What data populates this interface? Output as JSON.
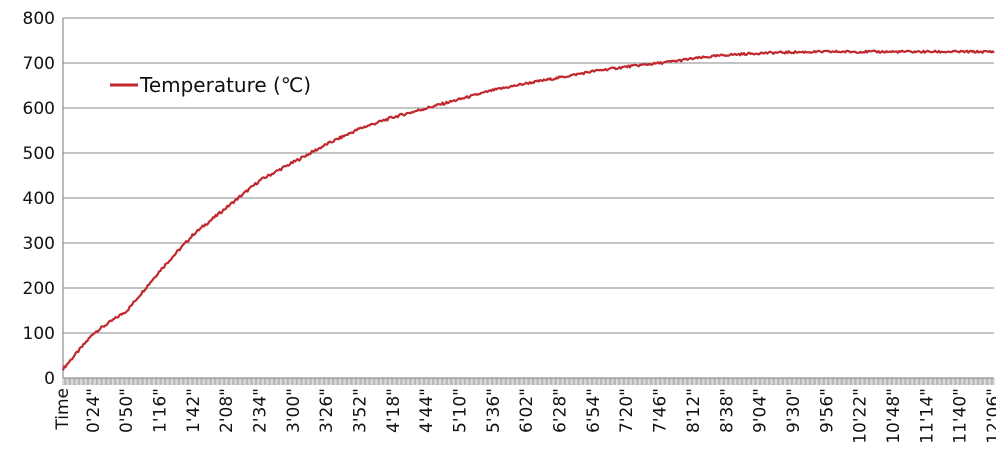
{
  "chart_data": {
    "type": "line",
    "title": "",
    "xlabel": "",
    "ylabel": "",
    "ylim": [
      0,
      800
    ],
    "yticks": [
      0,
      100,
      200,
      300,
      400,
      500,
      600,
      700,
      800
    ],
    "grid": true,
    "legend_position": "top-left",
    "xtick_labels": [
      "Time",
      "0'24\"",
      "0'50\"",
      "1'16\"",
      "1'42\"",
      "2'08\"",
      "2'34\"",
      "3'00\"",
      "3'26\"",
      "3'52\"",
      "4'18\"",
      "4'44\"",
      "5'10\"",
      "5'36\"",
      "6'02\"",
      "6'28\"",
      "6'54\"",
      "7'20\"",
      "7'46\"",
      "8'12\"",
      "8'38\"",
      "9'04\"",
      "9'30\"",
      "9'56\"",
      "10'22\"",
      "10'48\"",
      "11'14\"",
      "11'40\"",
      "12'06\""
    ],
    "series": [
      {
        "name": "Temperature (℃)",
        "color": "#c0282d",
        "x_seconds": [
          0,
          24,
          50,
          76,
          102,
          128,
          154,
          180,
          206,
          232,
          258,
          284,
          310,
          336,
          362,
          388,
          414,
          440,
          466,
          492,
          518,
          544,
          570,
          596,
          622,
          648,
          674,
          700,
          726
        ],
        "values": [
          20,
          100,
          150,
          240,
          320,
          380,
          440,
          480,
          520,
          555,
          580,
          600,
          620,
          640,
          655,
          668,
          682,
          692,
          700,
          710,
          718,
          722,
          724,
          725,
          725,
          725,
          725,
          725,
          725
        ]
      }
    ]
  }
}
